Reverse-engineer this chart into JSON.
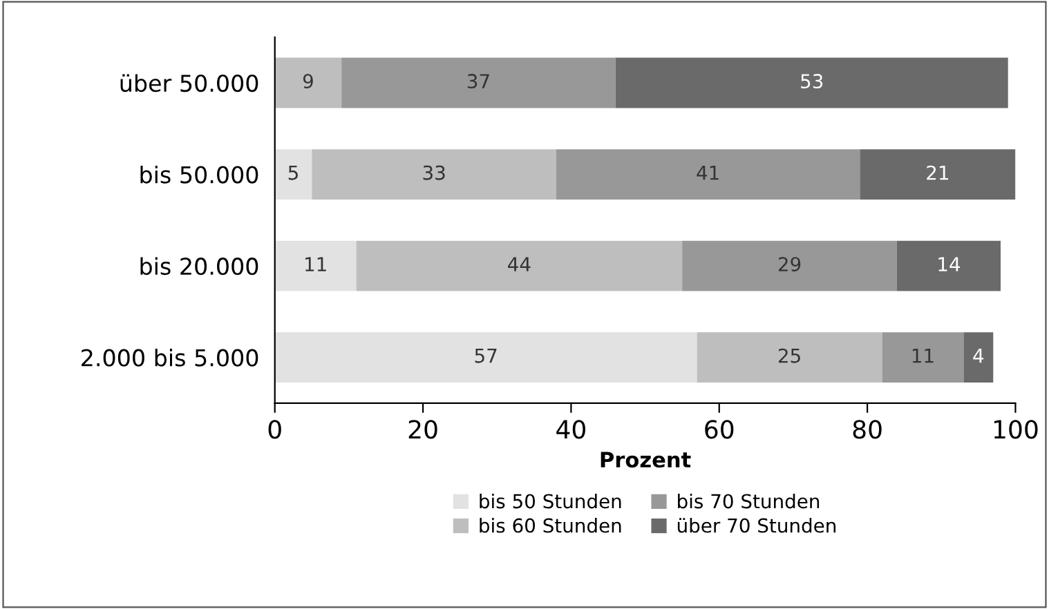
{
  "chart_data": {
    "type": "bar",
    "orientation": "horizontal",
    "stacked": true,
    "xlabel": "Prozent",
    "categories": [
      "über 50.000",
      "bis 50.000",
      "bis 20.000",
      "2.000 bis 5.000"
    ],
    "series": [
      {
        "name": "bis 50 Stunden",
        "color": "#e2e2e2",
        "values": [
          null,
          5,
          11,
          57
        ]
      },
      {
        "name": "bis 60 Stunden",
        "color": "#bebebe",
        "values": [
          9,
          33,
          44,
          25
        ]
      },
      {
        "name": "bis 70 Stunden",
        "color": "#989898",
        "values": [
          37,
          41,
          29,
          11
        ]
      },
      {
        "name": "über 70 Stunden",
        "color": "#6a6a6a",
        "values": [
          53,
          21,
          14,
          4
        ]
      }
    ],
    "xlim": [
      0,
      100
    ],
    "xticks": [
      0,
      20,
      40,
      60,
      80,
      100
    ],
    "grid": false,
    "legend": "bottom",
    "data_labels": true
  }
}
